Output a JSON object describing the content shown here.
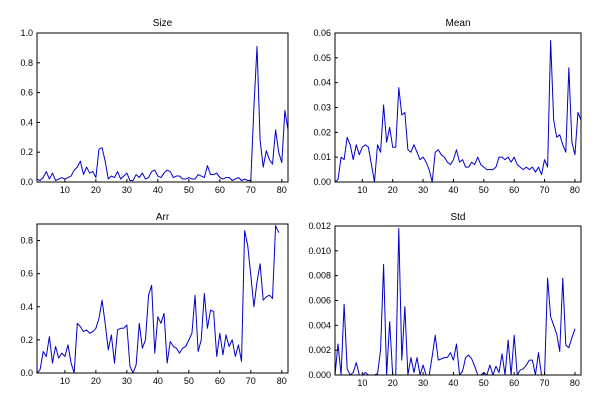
{
  "chart_data": [
    {
      "type": "line",
      "title": "Size",
      "color": "#0000cc",
      "xlim": [
        1,
        82
      ],
      "ylim": [
        0,
        1.0
      ],
      "xticks": [
        10,
        20,
        30,
        40,
        50,
        60,
        70,
        80
      ],
      "yticks": [
        0,
        0.2,
        0.4,
        0.6,
        0.8,
        1.0
      ],
      "ytick_labels": [
        "0.0",
        "0.2",
        "0.4",
        "0.6",
        "0.8",
        "1.0"
      ],
      "x_start": 1,
      "values": [
        0.02,
        0.01,
        0.03,
        0.07,
        0.02,
        0.06,
        0.01,
        0.02,
        0.03,
        0.02,
        0.03,
        0.04,
        0.08,
        0.1,
        0.14,
        0.05,
        0.1,
        0.06,
        0.07,
        0.03,
        0.22,
        0.23,
        0.14,
        0.02,
        0.04,
        0.03,
        0.07,
        0.02,
        0.04,
        0.06,
        0.01,
        0.01,
        0.05,
        0.03,
        0.06,
        0.02,
        0.03,
        0.07,
        0.08,
        0.04,
        0.03,
        0.06,
        0.08,
        0.07,
        0.03,
        0.04,
        0.04,
        0.02,
        0.02,
        0.03,
        0.02,
        0.02,
        0.05,
        0.04,
        0.03,
        0.11,
        0.05,
        0.05,
        0.06,
        0.03,
        0.02,
        0.03,
        0.03,
        0.01,
        0.02,
        0.03,
        0.01,
        0.02,
        0.01,
        0.01,
        0.5,
        0.91,
        0.28,
        0.1,
        0.21,
        0.15,
        0.12,
        0.35,
        0.2,
        0.13,
        0.48,
        0.35
      ]
    },
    {
      "type": "line",
      "title": "Mean",
      "color": "#0000cc",
      "xlim": [
        1,
        82
      ],
      "ylim": [
        0,
        0.06
      ],
      "xticks": [
        10,
        20,
        30,
        40,
        50,
        60,
        70,
        80
      ],
      "yticks": [
        0,
        0.01,
        0.02,
        0.03,
        0.04,
        0.05,
        0.06
      ],
      "ytick_labels": [
        "0.00",
        "0.01",
        "0.02",
        "0.03",
        "0.04",
        "0.05",
        "0.06"
      ],
      "x_start": 1,
      "values": [
        0.0,
        0.001,
        0.01,
        0.009,
        0.018,
        0.015,
        0.009,
        0.015,
        0.011,
        0.014,
        0.015,
        0.014,
        0.007,
        0.0,
        0.015,
        0.012,
        0.031,
        0.016,
        0.022,
        0.014,
        0.014,
        0.038,
        0.027,
        0.028,
        0.013,
        0.012,
        0.015,
        0.012,
        0.009,
        0.01,
        0.008,
        0.005,
        0.0,
        0.012,
        0.013,
        0.011,
        0.01,
        0.008,
        0.007,
        0.009,
        0.013,
        0.008,
        0.009,
        0.006,
        0.006,
        0.008,
        0.007,
        0.01,
        0.007,
        0.006,
        0.005,
        0.005,
        0.005,
        0.006,
        0.01,
        0.01,
        0.009,
        0.01,
        0.008,
        0.01,
        0.007,
        0.006,
        0.005,
        0.006,
        0.005,
        0.006,
        0.004,
        0.006,
        0.003,
        0.009,
        0.006,
        0.057,
        0.025,
        0.018,
        0.019,
        0.015,
        0.012,
        0.046,
        0.016,
        0.011,
        0.028,
        0.025
      ]
    },
    {
      "type": "line",
      "title": "Arr",
      "color": "#0000cc",
      "xlim": [
        1,
        82
      ],
      "ylim": [
        0,
        0.9
      ],
      "xticks": [
        10,
        20,
        30,
        40,
        50,
        60,
        70,
        80
      ],
      "yticks": [
        0,
        0.2,
        0.4,
        0.6,
        0.8
      ],
      "ytick_labels": [
        "0.0",
        "0.2",
        "0.4",
        "0.6",
        "0.8"
      ],
      "x_start": 1,
      "values": [
        0.0,
        0.02,
        0.13,
        0.1,
        0.22,
        0.06,
        0.16,
        0.09,
        0.12,
        0.1,
        0.17,
        0.06,
        0.0,
        0.3,
        0.28,
        0.25,
        0.26,
        0.24,
        0.25,
        0.27,
        0.33,
        0.44,
        0.3,
        0.14,
        0.23,
        0.06,
        0.26,
        0.27,
        0.27,
        0.29,
        0.04,
        0.0,
        0.05,
        0.3,
        0.15,
        0.2,
        0.47,
        0.53,
        0.12,
        0.34,
        0.3,
        0.36,
        0.06,
        0.19,
        0.16,
        0.15,
        0.12,
        0.15,
        0.16,
        0.2,
        0.24,
        0.47,
        0.13,
        0.2,
        0.48,
        0.27,
        0.38,
        0.37,
        0.1,
        0.24,
        0.11,
        0.23,
        0.16,
        0.2,
        0.1,
        0.17,
        0.07,
        0.86,
        0.77,
        0.59,
        0.4,
        0.55,
        0.66,
        0.44,
        0.46,
        0.47,
        0.45,
        0.89,
        0.85
      ]
    },
    {
      "type": "line",
      "title": "Std",
      "color": "#0000cc",
      "xlim": [
        1,
        82
      ],
      "ylim": [
        0,
        0.012
      ],
      "xticks": [
        10,
        20,
        30,
        40,
        50,
        60,
        70,
        80
      ],
      "yticks": [
        0,
        0.002,
        0.004,
        0.006,
        0.008,
        0.01,
        0.012
      ],
      "ytick_labels": [
        "0.000",
        "0.002",
        "0.004",
        "0.006",
        "0.008",
        "0.010",
        "0.012"
      ],
      "x_start": 1,
      "values": [
        0.0,
        0.0025,
        0.0,
        0.0057,
        0.0005,
        0.0,
        0.0002,
        0.001,
        0.0,
        0.0,
        0.0002,
        0.0,
        0.0,
        0.0,
        0.0001,
        0.002,
        0.0089,
        0.0,
        0.0043,
        0.0,
        0.0,
        0.0118,
        0.0012,
        0.0055,
        0.0,
        0.0014,
        0.0002,
        0.0014,
        0.0,
        0.0008,
        0.0,
        0.0,
        0.0015,
        0.0032,
        0.0012,
        0.0013,
        0.0014,
        0.0014,
        0.0018,
        0.0012,
        0.0025,
        0.0,
        0.0003,
        0.0014,
        0.0016,
        0.0013,
        0.0007,
        0.0,
        0.0,
        0.0002,
        0.0,
        0.0008,
        0.0,
        0.0007,
        0.0002,
        0.0017,
        0.0,
        0.0028,
        0.0,
        0.0032,
        0.0,
        0.0004,
        0.0005,
        0.0008,
        0.0012,
        0.0012,
        0.0,
        0.0018,
        0.0,
        0.0,
        0.0078,
        0.0047,
        0.004,
        0.0033,
        0.0019,
        0.0078,
        0.0024,
        0.0022,
        0.003,
        0.0037
      ]
    }
  ]
}
